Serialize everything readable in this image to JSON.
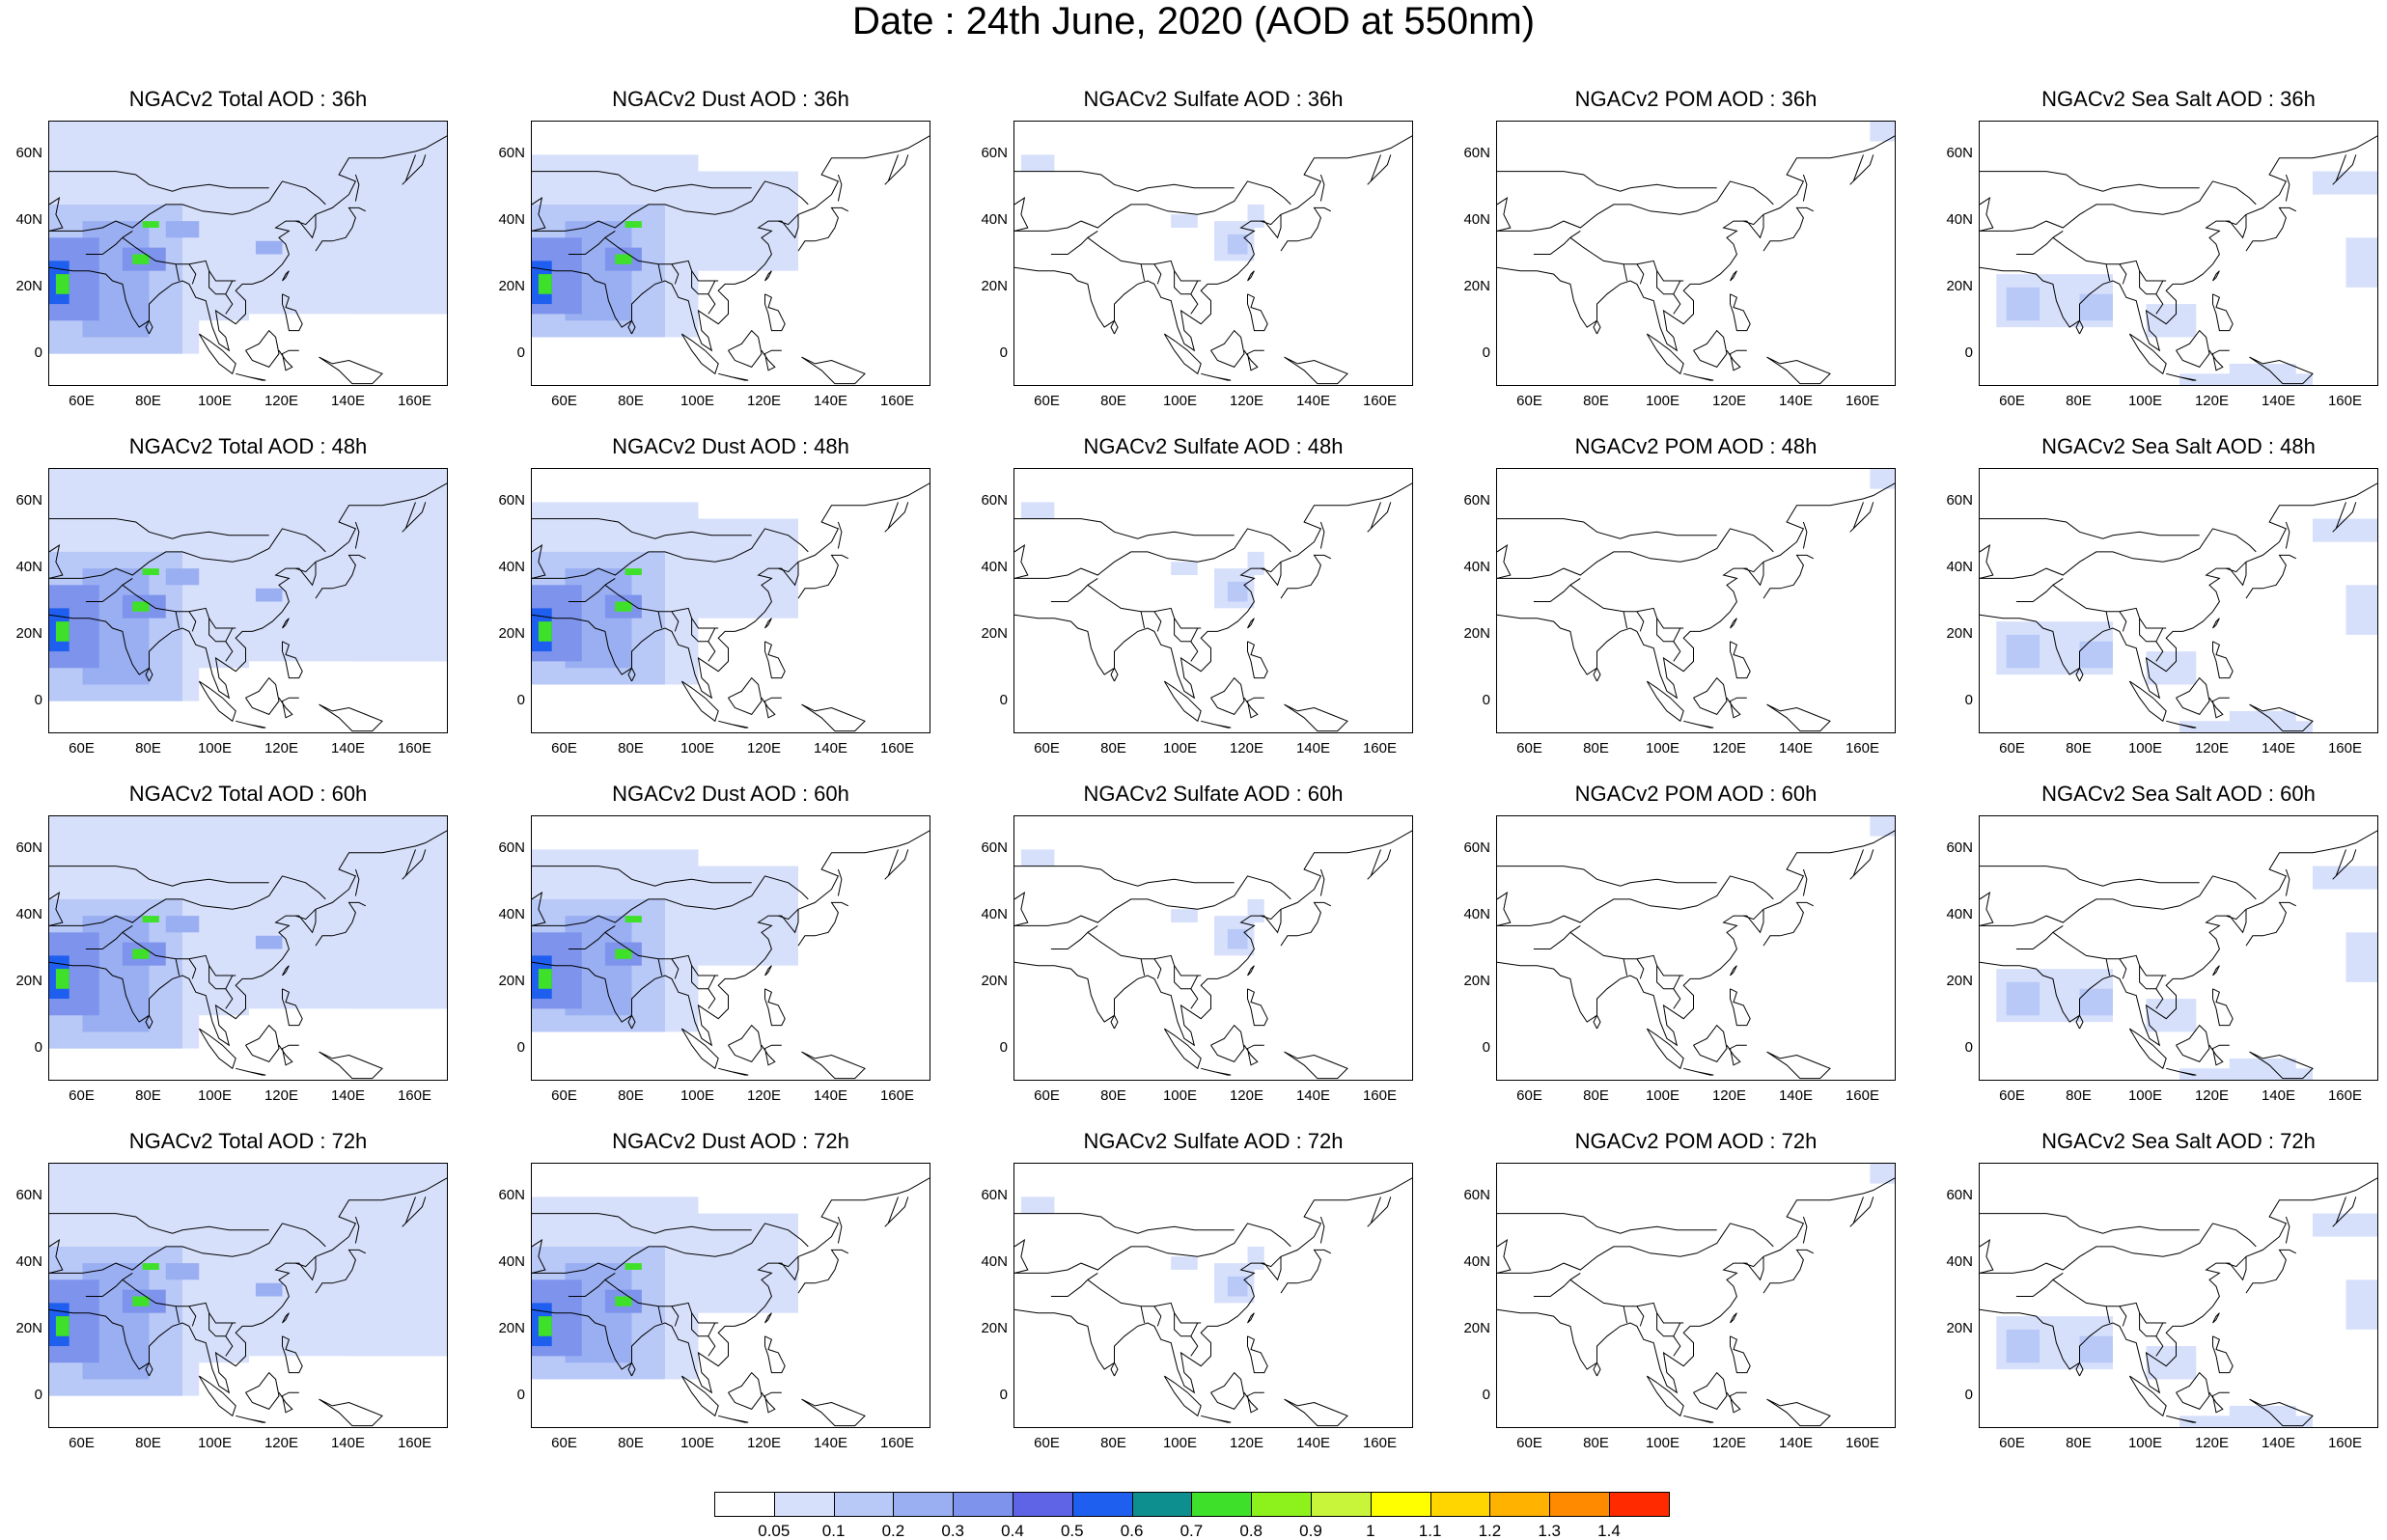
{
  "title": "Date : 24th June, 2020 (AOD at 550nm)",
  "axes": {
    "lat_ticks": [
      "60N",
      "40N",
      "20N",
      "0"
    ],
    "lon_ticks": [
      "60E",
      "80E",
      "100E",
      "120E",
      "140E",
      "160E"
    ]
  },
  "panels": [
    {
      "title": "NGACv2 Total AOD : 36h",
      "type": "total"
    },
    {
      "title": "NGACv2 Dust AOD : 36h",
      "type": "dust"
    },
    {
      "title": "NGACv2 Sulfate AOD : 36h",
      "type": "sulfate"
    },
    {
      "title": "NGACv2 POM AOD : 36h",
      "type": "pom"
    },
    {
      "title": "NGACv2 Sea Salt AOD : 36h",
      "type": "seasalt"
    },
    {
      "title": "NGACv2 Total AOD : 48h",
      "type": "total"
    },
    {
      "title": "NGACv2 Dust AOD : 48h",
      "type": "dust"
    },
    {
      "title": "NGACv2 Sulfate AOD : 48h",
      "type": "sulfate"
    },
    {
      "title": "NGACv2 POM AOD : 48h",
      "type": "pom"
    },
    {
      "title": "NGACv2 Sea Salt AOD : 48h",
      "type": "seasalt"
    },
    {
      "title": "NGACv2 Total AOD : 60h",
      "type": "total"
    },
    {
      "title": "NGACv2 Dust AOD : 60h",
      "type": "dust"
    },
    {
      "title": "NGACv2 Sulfate AOD : 60h",
      "type": "sulfate"
    },
    {
      "title": "NGACv2 POM AOD : 60h",
      "type": "pom"
    },
    {
      "title": "NGACv2 Sea Salt AOD : 60h",
      "type": "seasalt"
    },
    {
      "title": "NGACv2 Total AOD : 72h",
      "type": "total"
    },
    {
      "title": "NGACv2 Dust AOD : 72h",
      "type": "dust"
    },
    {
      "title": "NGACv2 Sulfate AOD : 72h",
      "type": "sulfate"
    },
    {
      "title": "NGACv2 POM AOD : 72h",
      "type": "pom"
    },
    {
      "title": "NGACv2 Sea Salt  AOD : 72h",
      "type": "seasalt"
    }
  ],
  "colorbar": {
    "labels": [
      "0.05",
      "0.1",
      "0.2",
      "0.3",
      "0.4",
      "0.5",
      "0.6",
      "0.7",
      "0.8",
      "0.9",
      "1",
      "1.1",
      "1.2",
      "1.3",
      "1.4"
    ],
    "colors": [
      "#ffffff",
      "#d7e0fb",
      "#b8c8f7",
      "#9aaff2",
      "#7d93ec",
      "#5f63e6",
      "#1f5ff0",
      "#0e8f8f",
      "#3fe02a",
      "#8df21c",
      "#c8f53a",
      "#ffff00",
      "#ffd600",
      "#ffb300",
      "#ff8a00",
      "#ff2a00"
    ]
  }
}
